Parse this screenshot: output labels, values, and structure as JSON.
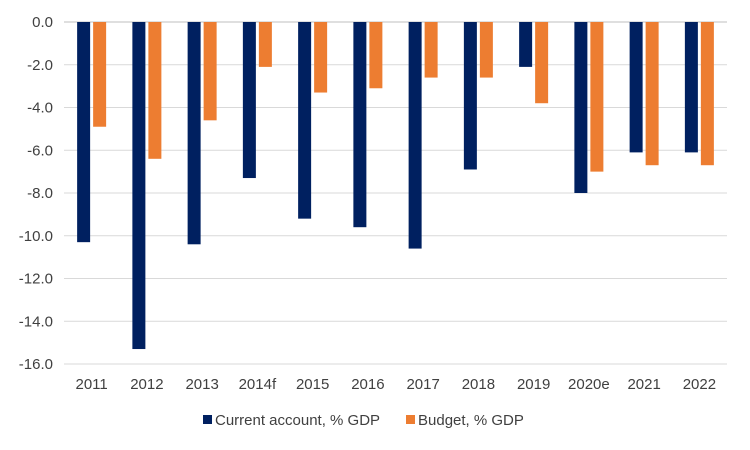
{
  "chart_data": {
    "type": "bar",
    "categories": [
      "2011",
      "2012",
      "2013",
      "2014f",
      "2015",
      "2016",
      "2017",
      "2018",
      "2019",
      "2020e",
      "2021",
      "2022"
    ],
    "series": [
      {
        "name": "Current account, % GDP",
        "color": "#002060",
        "values": [
          -10.3,
          -15.3,
          -10.4,
          -7.3,
          -9.2,
          -9.6,
          -10.6,
          -6.9,
          -2.1,
          -8.0,
          -6.1,
          -6.1
        ]
      },
      {
        "name": "Budget, % GDP",
        "color": "#ed7d31",
        "values": [
          -4.9,
          -6.4,
          -4.6,
          -2.1,
          -3.3,
          -3.1,
          -2.6,
          -2.6,
          -3.8,
          -7.0,
          -6.7,
          -6.7
        ]
      }
    ],
    "y_ticks": [
      "0.0",
      "-2.0",
      "-4.0",
      "-6.0",
      "-8.0",
      "-10.0",
      "-12.0",
      "-14.0",
      "-16.0"
    ],
    "ylim": [
      -16,
      0
    ],
    "grid": true,
    "legend_position": "bottom",
    "title": "",
    "xlabel": "",
    "ylabel": ""
  }
}
